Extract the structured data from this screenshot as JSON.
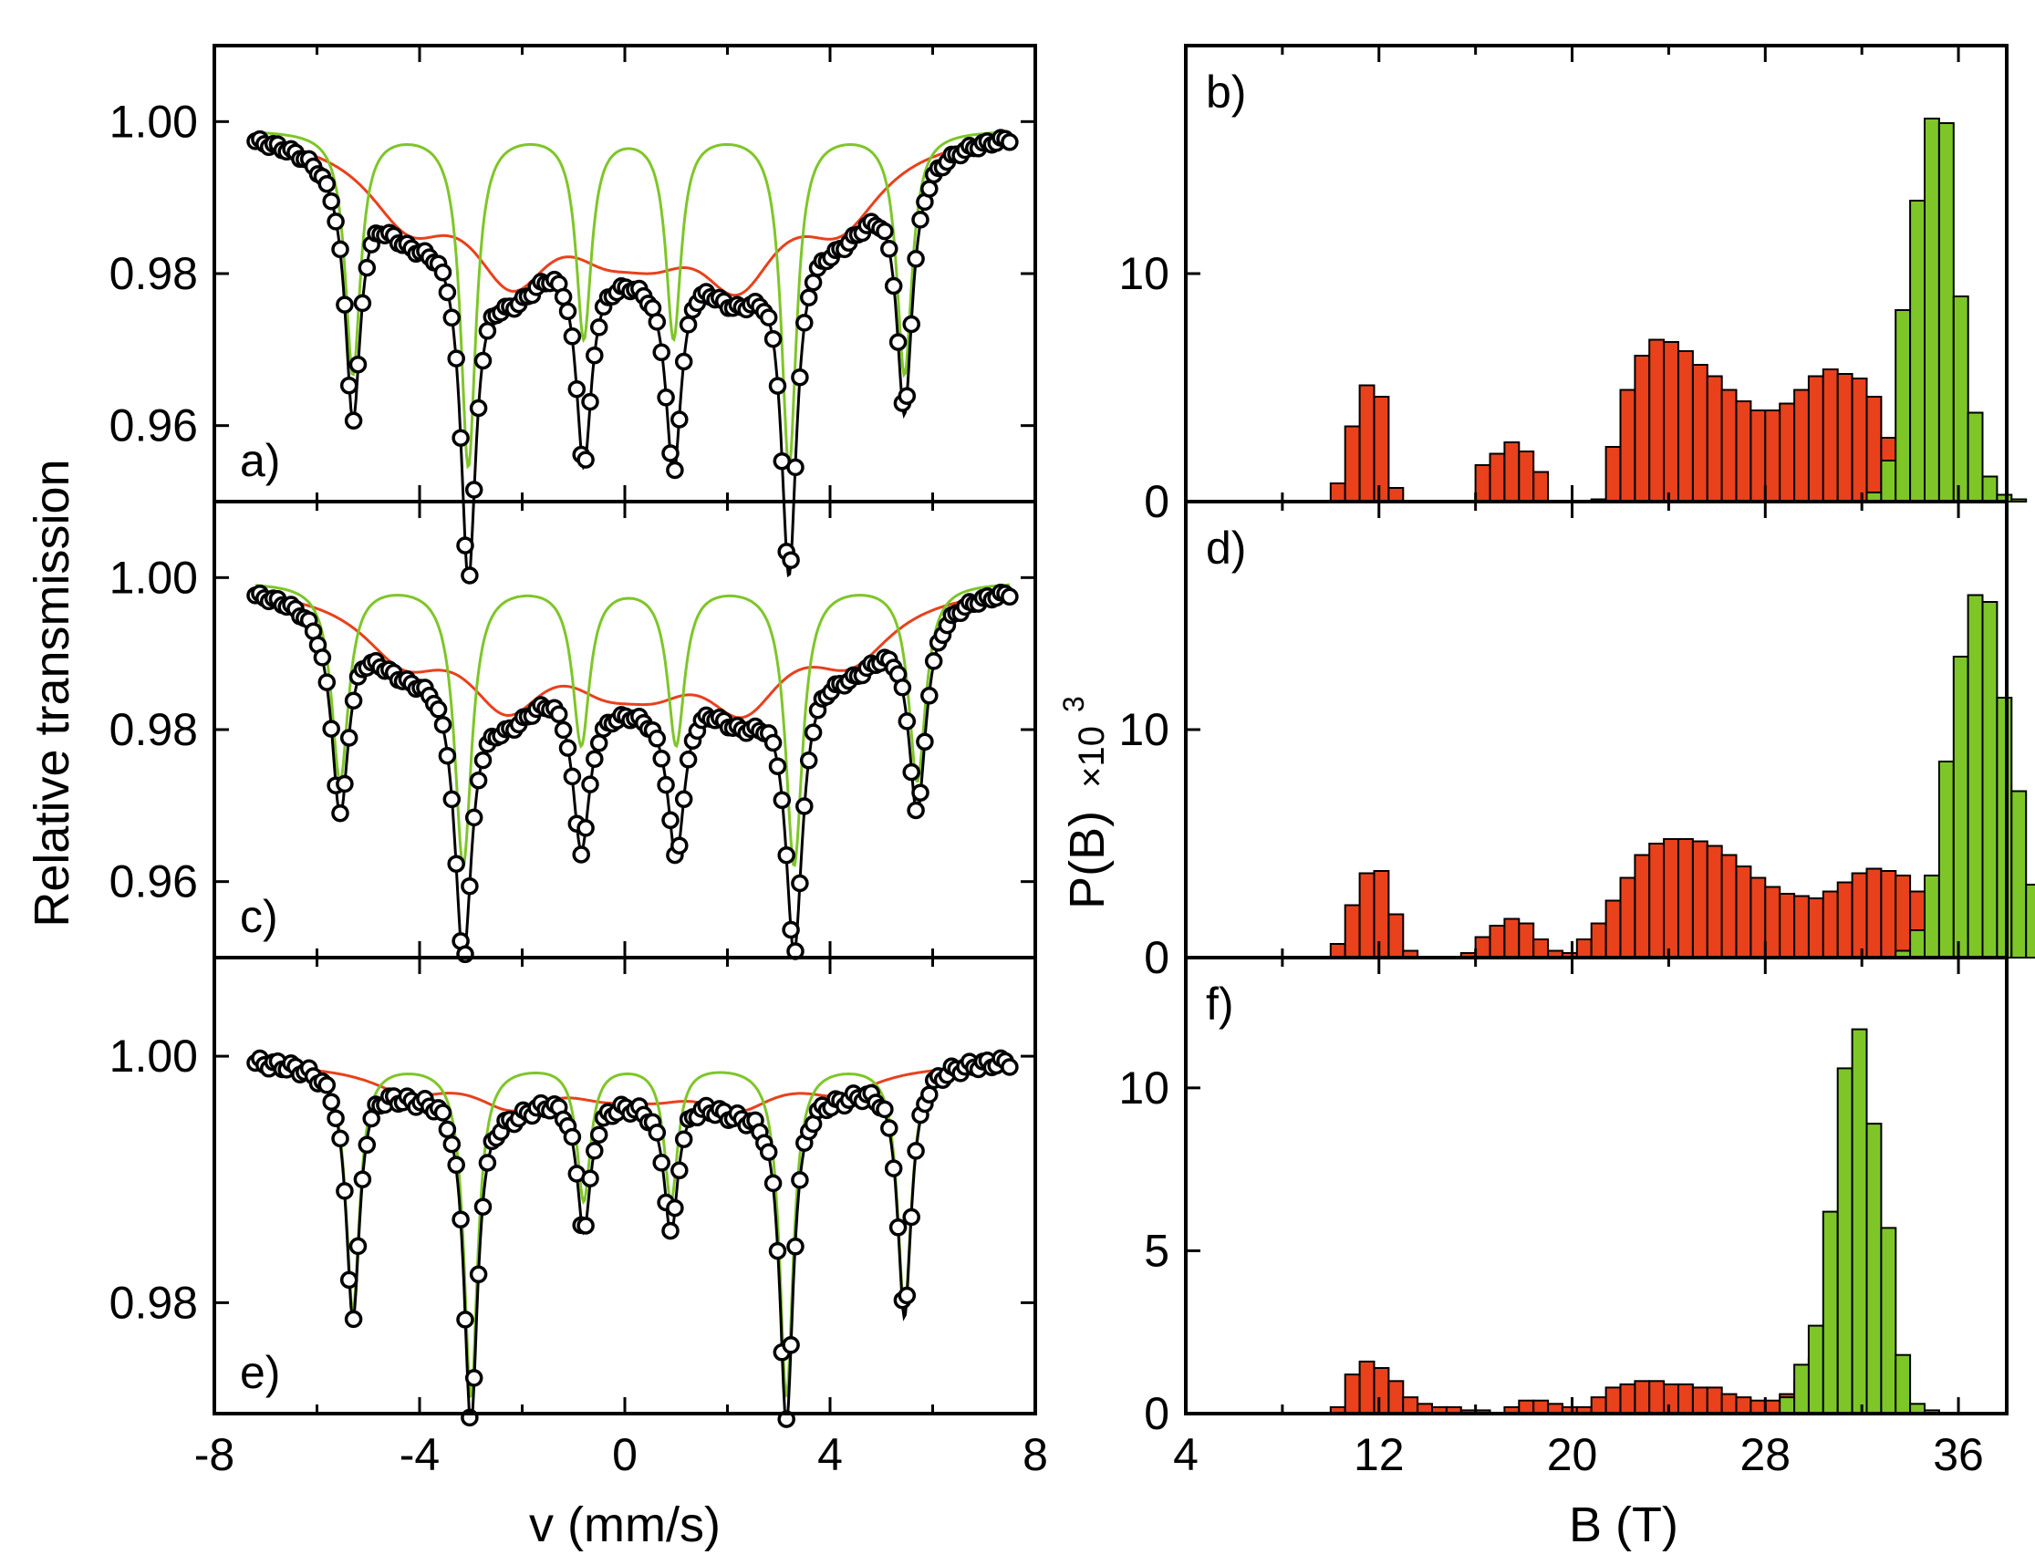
{
  "figure": {
    "colors": {
      "green": "#7ec628",
      "red": "#e8411c",
      "marker_fill": "#ffffff",
      "line": "#000000"
    },
    "left_xlabel": "v (mm/s)",
    "left_ylabel": "Relative transmission",
    "right_xlabel": "B (T)",
    "right_ylabel": "P(B)",
    "right_ylabel_factor": "×10",
    "right_ylabel_exp": "3"
  },
  "chart_data": [
    {
      "id": "a",
      "type": "scatter",
      "label": "a)",
      "xlim": [
        -8,
        8
      ],
      "ylim": [
        0.95,
        1.01
      ],
      "xticks": [
        "-8",
        "-4",
        "0",
        "4",
        "8"
      ],
      "yticks": [
        {
          "v": 1.0,
          "t": "1.00"
        },
        {
          "v": 0.98,
          "t": "0.98"
        },
        {
          "v": 0.96,
          "t": "0.96"
        }
      ],
      "green_sextet": {
        "centers": [
          -5.3,
          -3.05,
          -0.8,
          0.95,
          3.2,
          5.45
        ],
        "depths": [
          0.032,
          0.044,
          0.027,
          0.027,
          0.044,
          0.032
        ],
        "width": 0.18,
        "baseline": 0.999
      },
      "red_sextet": {
        "centers": [
          -4.2,
          -2.2,
          -0.4,
          0.6,
          2.2,
          4.2
        ],
        "depths": [
          0.01,
          0.016,
          0.008,
          0.008,
          0.016,
          0.01
        ],
        "width": 1.0,
        "baseline": 0.9995
      },
      "x_range": [
        -7.2,
        7.5
      ],
      "n_points": 170
    },
    {
      "id": "c",
      "type": "scatter",
      "label": "c)",
      "xlim": [
        -8,
        8
      ],
      "ylim": [
        0.95,
        1.01
      ],
      "xticks": [
        "-8",
        "-4",
        "0",
        "4",
        "8"
      ],
      "yticks": [
        {
          "v": 1.0,
          "t": "1.00"
        },
        {
          "v": 0.98,
          "t": "0.98"
        },
        {
          "v": 0.96,
          "t": "0.96"
        }
      ],
      "green_sextet": {
        "centers": [
          -5.55,
          -3.15,
          -0.85,
          1.0,
          3.3,
          5.7
        ],
        "depths": [
          0.026,
          0.037,
          0.021,
          0.021,
          0.037,
          0.026
        ],
        "width": 0.2,
        "baseline": 0.9995
      },
      "red_sextet": {
        "centers": [
          -4.3,
          -2.3,
          -0.4,
          0.6,
          2.3,
          4.4
        ],
        "depths": [
          0.008,
          0.013,
          0.007,
          0.007,
          0.013,
          0.008
        ],
        "width": 1.0,
        "baseline": 0.9995
      },
      "x_range": [
        -7.2,
        7.5
      ],
      "n_points": 170
    },
    {
      "id": "e",
      "type": "scatter",
      "label": "e)",
      "xlim": [
        -8,
        8
      ],
      "ylim": [
        0.971,
        1.008
      ],
      "xticks": [
        "-8",
        "-4",
        "0",
        "4",
        "8"
      ],
      "yticks": [
        {
          "v": 1.0,
          "t": "1.00"
        },
        {
          "v": 0.98,
          "t": "0.98"
        }
      ],
      "green_sextet": {
        "centers": [
          -5.3,
          -3.0,
          -0.8,
          0.9,
          3.15,
          5.45
        ],
        "depths": [
          0.02,
          0.027,
          0.011,
          0.011,
          0.027,
          0.02
        ],
        "width": 0.16,
        "baseline": 0.9995
      },
      "red_sextet": {
        "centers": [
          -4.2,
          -2.2,
          -0.4,
          0.6,
          2.2,
          4.2
        ],
        "depths": [
          0.002,
          0.003,
          0.0015,
          0.0015,
          0.003,
          0.002
        ],
        "width": 0.9,
        "baseline": 0.9995
      },
      "x_range": [
        -7.2,
        7.5
      ],
      "n_points": 170
    },
    {
      "id": "b",
      "type": "bar",
      "label": "b)",
      "xlim": [
        4,
        38
      ],
      "ylim": [
        0,
        20
      ],
      "xticks": [
        "4",
        "12",
        "20",
        "28",
        "36"
      ],
      "yticks": [
        {
          "v": 0,
          "t": "0"
        },
        {
          "v": 10,
          "t": "10"
        }
      ],
      "bin_start": 10,
      "bin_width": 0.6,
      "red": [
        0.8,
        3.3,
        5.1,
        4.6,
        0.6,
        0,
        0,
        0,
        0,
        0,
        1.6,
        2.1,
        2.6,
        2.2,
        1.3,
        0,
        0,
        0,
        0.1,
        2.4,
        4.9,
        6.4,
        7.1,
        7.0,
        6.6,
        6.0,
        5.5,
        4.9,
        4.4,
        4.0,
        4.0,
        4.3,
        4.9,
        5.5,
        5.8,
        5.6,
        5.4,
        4.6,
        2.8,
        1.2,
        0.4,
        0,
        0,
        0
      ],
      "green": [
        0,
        0,
        0,
        0,
        0,
        0,
        0,
        0,
        0,
        0,
        0,
        0,
        0,
        0,
        0,
        0,
        0,
        0,
        0,
        0,
        0,
        0,
        0,
        0,
        0,
        0,
        0,
        0,
        0,
        0,
        0,
        0,
        0,
        0,
        0,
        0,
        0,
        0.4,
        1.8,
        8.4,
        13.2,
        16.8,
        16.6,
        9.0,
        3.9,
        1.1,
        0.3,
        0.1
      ]
    },
    {
      "id": "d",
      "type": "bar",
      "label": "d)",
      "xlim": [
        4,
        38
      ],
      "ylim": [
        0,
        20
      ],
      "xticks": [
        "4",
        "12",
        "20",
        "28",
        "36"
      ],
      "yticks": [
        {
          "v": 0,
          "t": "0"
        },
        {
          "v": 10,
          "t": "10"
        }
      ],
      "bin_start": 10,
      "bin_width": 0.6,
      "red": [
        0.6,
        2.3,
        3.7,
        3.8,
        1.9,
        0.3,
        0,
        0,
        0,
        0.2,
        0.9,
        1.4,
        1.7,
        1.5,
        0.8,
        0.3,
        0.2,
        0.8,
        1.5,
        2.5,
        3.5,
        4.5,
        5.0,
        5.2,
        5.2,
        5.1,
        4.9,
        4.5,
        4.0,
        3.5,
        3.1,
        2.8,
        2.7,
        2.6,
        2.9,
        3.3,
        3.7,
        3.9,
        3.8,
        3.6,
        2.9,
        1.6,
        0.6,
        0.1
      ],
      "green": [
        0,
        0,
        0,
        0,
        0,
        0,
        0,
        0,
        0,
        0,
        0,
        0,
        0,
        0,
        0,
        0,
        0,
        0,
        0,
        0,
        0,
        0,
        0,
        0,
        0,
        0,
        0,
        0,
        0,
        0,
        0,
        0,
        0,
        0,
        0,
        0,
        0,
        0,
        0,
        0.3,
        1.2,
        3.6,
        8.6,
        13.2,
        15.9,
        15.6,
        11.4,
        7.3,
        3.2,
        1.2
      ]
    },
    {
      "id": "f",
      "type": "bar",
      "label": "f)",
      "xlim": [
        4,
        38
      ],
      "ylim": [
        0,
        14
      ],
      "xticks": [
        "4",
        "12",
        "20",
        "28",
        "36"
      ],
      "yticks": [
        {
          "v": 0,
          "t": "0"
        },
        {
          "v": 5,
          "t": "5"
        },
        {
          "v": 10,
          "t": "10"
        }
      ],
      "bin_start": 10,
      "bin_width": 0.6,
      "red": [
        0.2,
        1.2,
        1.6,
        1.4,
        1.0,
        0.5,
        0.3,
        0.2,
        0.2,
        0.1,
        0.1,
        0,
        0.2,
        0.4,
        0.4,
        0.3,
        0.2,
        0.2,
        0.5,
        0.8,
        0.9,
        1.0,
        1.0,
        0.9,
        0.9,
        0.8,
        0.8,
        0.6,
        0.5,
        0.4,
        0.4,
        0.6,
        1.0,
        1.7,
        0.9,
        0.3,
        0.1,
        0
      ],
      "green": [
        0,
        0,
        0,
        0,
        0,
        0,
        0,
        0,
        0,
        0,
        0,
        0,
        0,
        0,
        0,
        0,
        0,
        0,
        0,
        0,
        0,
        0,
        0,
        0,
        0,
        0,
        0,
        0,
        0,
        0,
        0,
        0.5,
        1.5,
        2.7,
        6.2,
        10.6,
        11.8,
        8.9,
        5.7,
        1.8,
        0.3,
        0.1
      ]
    }
  ]
}
